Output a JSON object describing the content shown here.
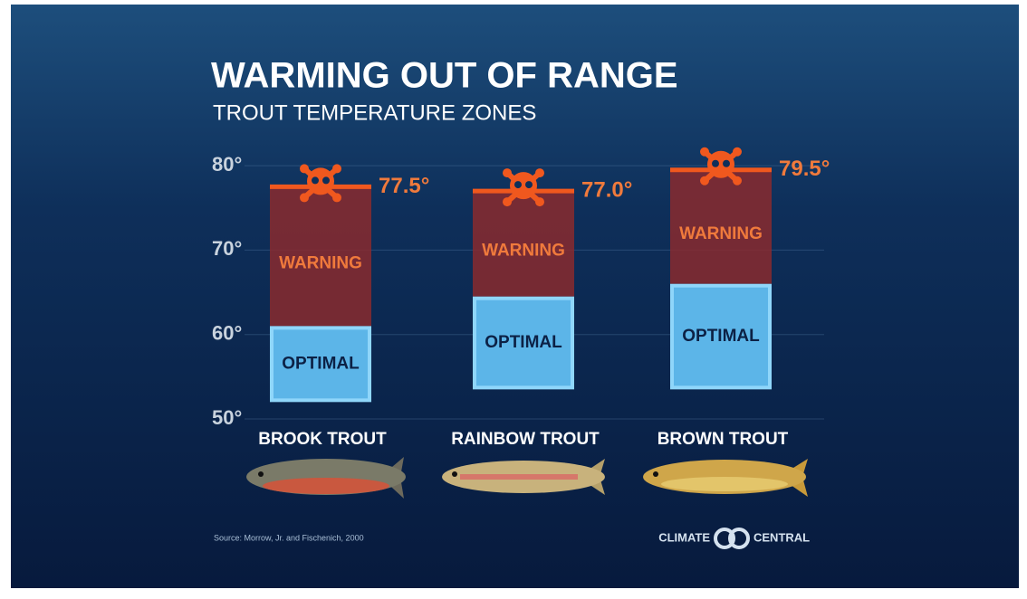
{
  "chart_data": {
    "type": "range_bar",
    "title": "WARMING OUT OF RANGE",
    "subtitle": "TROUT TEMPERATURE ZONES",
    "categories": [
      "BROOK TROUT",
      "RAINBOW TROUT",
      "BROWN TROUT"
    ],
    "series": [
      {
        "name": "OPTIMAL",
        "color": "#5cb5e8",
        "low": [
          52,
          53.5,
          53.5
        ],
        "high": [
          61,
          64.5,
          66
        ]
      },
      {
        "name": "WARNING",
        "color": "#8a2a2e",
        "high": [
          77.5,
          77.0,
          79.5
        ],
        "value_labels": [
          "77.5°",
          "77.0°",
          "79.5°"
        ]
      }
    ],
    "ylim": [
      50,
      81.5
    ],
    "yticks": [
      {
        "value": 50,
        "label": "50°"
      },
      {
        "value": 60,
        "label": "60°"
      },
      {
        "value": 70,
        "label": "70°"
      },
      {
        "value": 80,
        "label": "80°"
      }
    ],
    "grid": true,
    "source": "Source: Morrow, Jr. and Fischenich, 2000",
    "logo": {
      "left": "CLIMATE",
      "right": "CENTRAL"
    }
  }
}
